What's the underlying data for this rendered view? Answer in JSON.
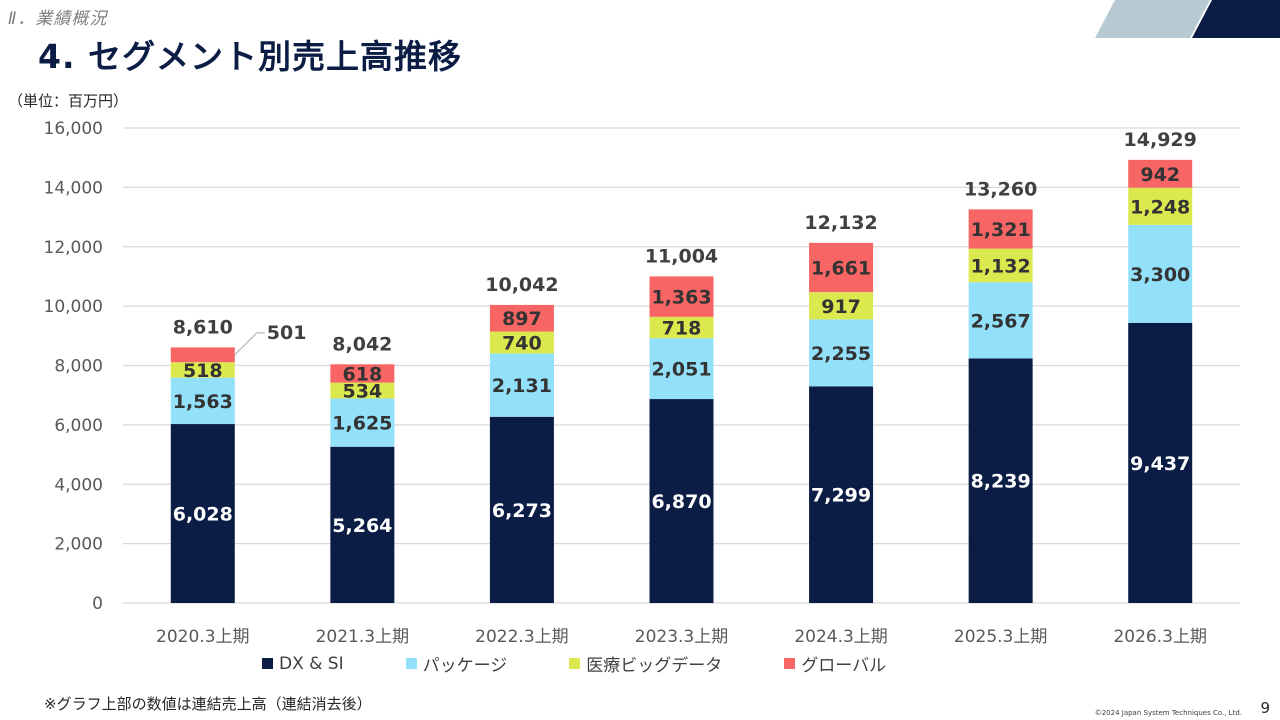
{
  "header": {
    "section_label": "Ⅱ．業績概況",
    "title": "4. セグメント別売上高推移",
    "unit_label": "（単位：百万円）"
  },
  "colors": {
    "dx_si": "#0b1d45",
    "package": "#93e0fb",
    "medical": "#dbe84e",
    "global": "#f86565",
    "deco_light": "#b7c9d3",
    "deco_dark": "#0b1d45"
  },
  "chart_data": {
    "type": "bar",
    "stacked": true,
    "title": "",
    "xlabel": "",
    "ylabel": "（単位：百万円）",
    "categories": [
      "2020.3上期",
      "2021.3上期",
      "2022.3上期",
      "2023.3上期",
      "2024.3上期",
      "2025.3上期",
      "2026.3上期"
    ],
    "series": [
      {
        "name": "DX & SI",
        "key": "dx_si",
        "values": [
          6028,
          5264,
          6273,
          6870,
          7299,
          8239,
          9437
        ]
      },
      {
        "name": "パッケージ",
        "key": "package",
        "values": [
          1563,
          1625,
          2131,
          2051,
          2255,
          2567,
          3300
        ]
      },
      {
        "name": "医療ビッグデータ",
        "key": "medical",
        "values": [
          518,
          534,
          740,
          718,
          917,
          1132,
          1248
        ]
      },
      {
        "name": "グローバル",
        "key": "global",
        "values": [
          501,
          618,
          897,
          1363,
          1661,
          1321,
          942
        ]
      }
    ],
    "totals": [
      8610,
      8042,
      10042,
      11004,
      12132,
      13260,
      14929
    ],
    "total_note": "連結売上高（連結消去後）",
    "ylim": [
      0,
      16000
    ],
    "yticks": [
      0,
      2000,
      4000,
      6000,
      8000,
      10000,
      12000,
      14000,
      16000
    ],
    "ytick_labels": [
      "0",
      "2,000",
      "4,000",
      "6,000",
      "8,000",
      "10,000",
      "12,000",
      "14,000",
      "16,000"
    ],
    "grid": true,
    "legend_position": "bottom",
    "callouts": [
      {
        "category_index": 0,
        "series": "グローバル",
        "label": "501"
      }
    ]
  },
  "legend": [
    {
      "label": "DX & SI",
      "key": "dx_si"
    },
    {
      "label": "パッケージ",
      "key": "package"
    },
    {
      "label": "医療ビッグデータ",
      "key": "medical"
    },
    {
      "label": "グローバル",
      "key": "global"
    }
  ],
  "footer": {
    "footnote": "※グラフ上部の数値は連結売上高（連結消去後）",
    "copyright": "©2024 Japan System Techniques Co., Ltd.",
    "page_number": "9"
  }
}
